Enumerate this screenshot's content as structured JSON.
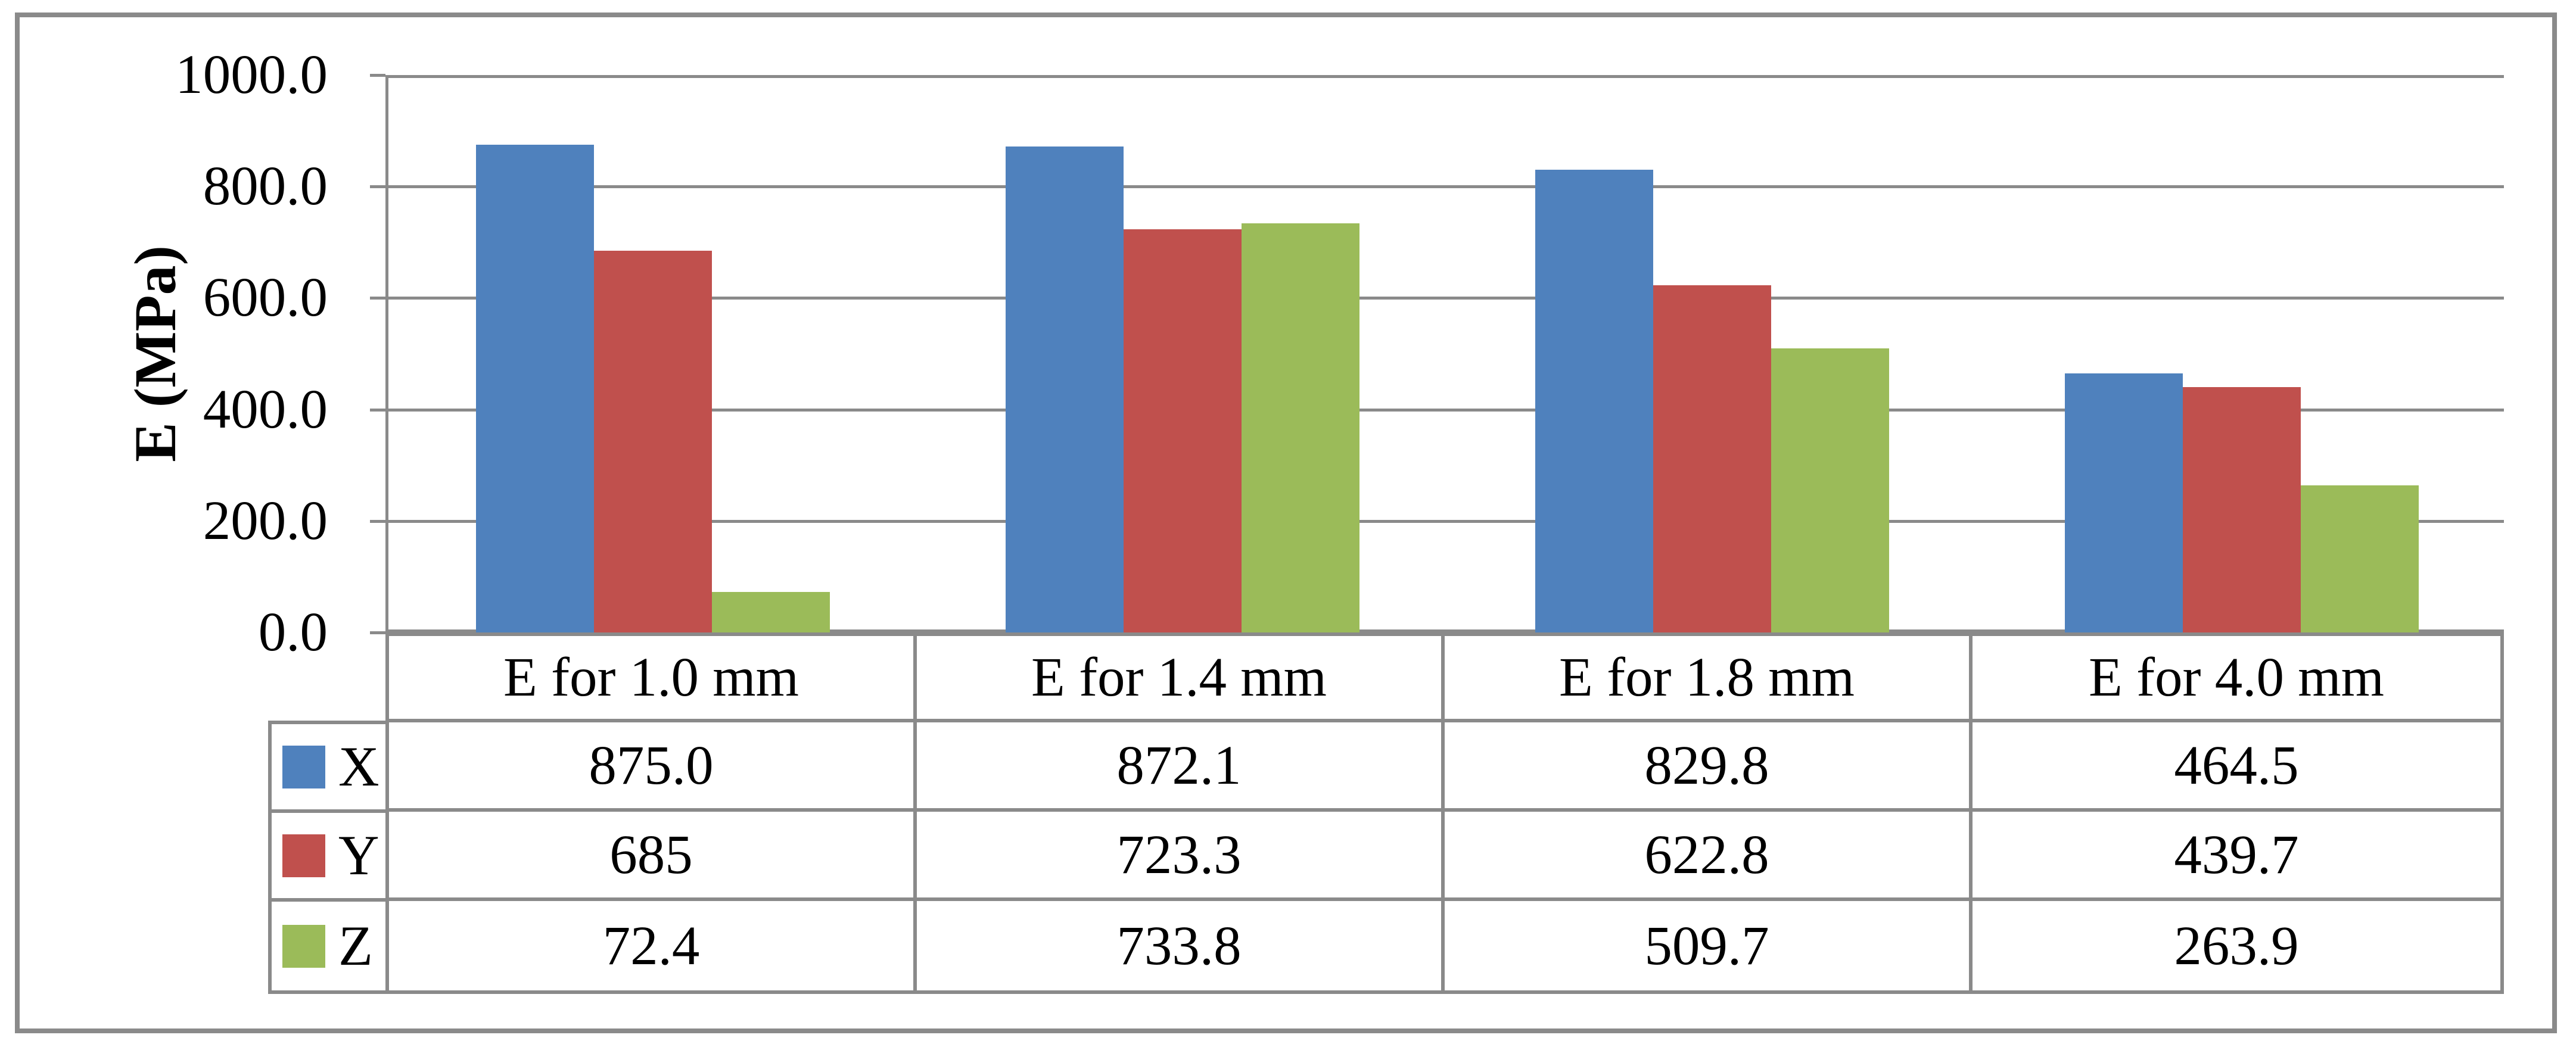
{
  "figure": {
    "frame_color": "#8a8a8a",
    "background": "#ffffff",
    "text_color": "#000000"
  },
  "y_axis": {
    "title": "E (MPa)",
    "tick_labels": [
      "1000.0",
      "800.0",
      "600.0",
      "400.0",
      "200.0",
      "0.0"
    ]
  },
  "chart_data": {
    "type": "bar",
    "title": "",
    "xlabel": "",
    "ylabel": "E (MPa)",
    "ylim": [
      0,
      1000
    ],
    "ytick_step": 200,
    "grid": "horizontal gridlines on",
    "legend_position": "left column of data table",
    "gridline_color": "#8a8a8a",
    "categories": [
      "E for 1.0 mm",
      "E for 1.4 mm",
      "E for 1.8 mm",
      "E for 4.0 mm"
    ],
    "series": [
      {
        "name": "X",
        "color": "#4F81BD",
        "values": [
          875.0,
          872.1,
          829.8,
          464.5
        ],
        "display_values": [
          "875.0",
          "872.1",
          "829.8",
          "464.5"
        ]
      },
      {
        "name": "Y",
        "color": "#C0504D",
        "values": [
          685,
          723.3,
          622.8,
          439.7
        ],
        "display_values": [
          "685",
          "723.3",
          "622.8",
          "439.7"
        ]
      },
      {
        "name": "Z",
        "color": "#9BBB59",
        "values": [
          72.4,
          733.8,
          509.7,
          263.9
        ],
        "display_values": [
          "72.4",
          "733.8",
          "509.7",
          "263.9"
        ]
      }
    ]
  }
}
